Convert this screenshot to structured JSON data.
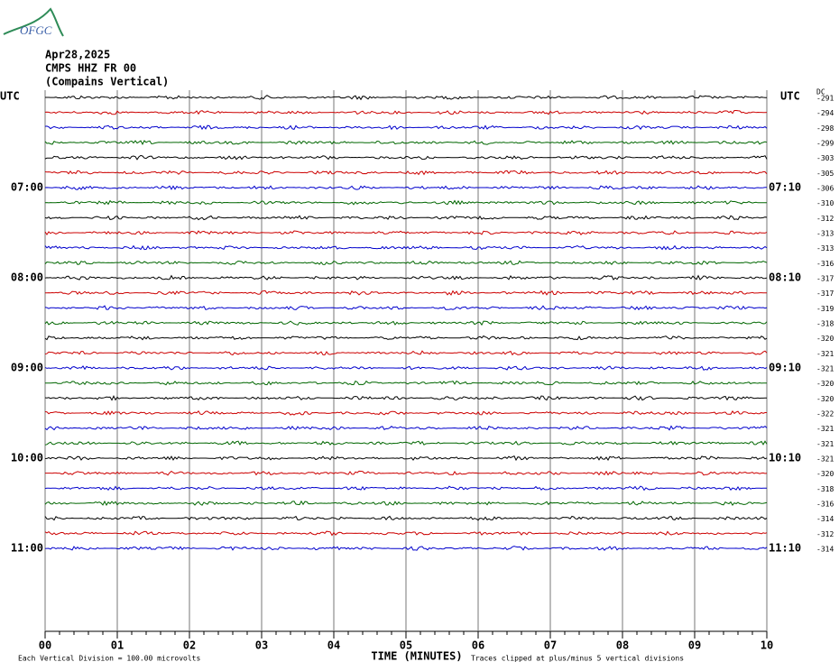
{
  "logo": "OFGC",
  "header": {
    "date": "Apr28,2025",
    "station": "CMPS HHZ FR 00",
    "location": "(Compains Vertical)"
  },
  "left_labels": [
    "UTC",
    "07:00",
    "08:00",
    "09:00",
    "10:00",
    "11:00"
  ],
  "right_labels": [
    "UTC",
    "07:10",
    "08:10",
    "09:10",
    "10:10",
    "11:10"
  ],
  "dc_header": "DC",
  "dc_values": [
    -291,
    -294,
    -298,
    -299,
    -303,
    -305,
    -306,
    -310,
    -312,
    -313,
    -313,
    -316,
    -317,
    -317,
    -319,
    -318,
    -320,
    -321,
    -321,
    -320,
    -320,
    -322,
    -321,
    -321,
    -321,
    -320,
    -318,
    -316,
    -314,
    -312,
    -314
  ],
  "trace_colors": [
    "#000000",
    "#cc0000",
    "#0000cc",
    "#006600"
  ],
  "x_ticks": [
    "00",
    "01",
    "02",
    "03",
    "04",
    "05",
    "06",
    "07",
    "08",
    "09",
    "10"
  ],
  "x_axis_title": "TIME (MINUTES)",
  "footer_left": "Each Vertical Division =  100.00 microvolts",
  "footer_right": "Traces clipped at plus/minus 5 vertical divisions"
}
